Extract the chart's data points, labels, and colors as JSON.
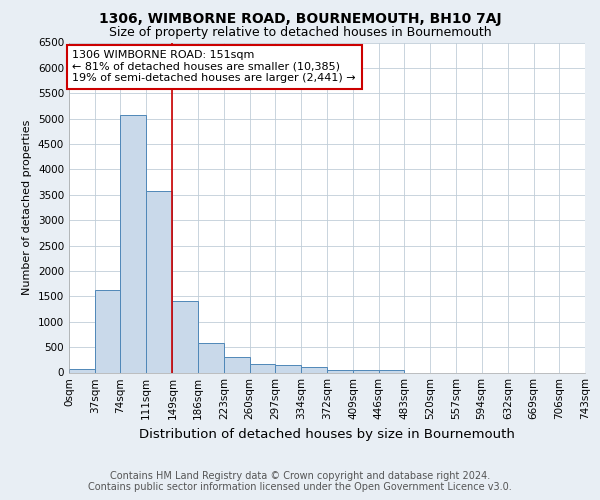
{
  "title": "1306, WIMBORNE ROAD, BOURNEMOUTH, BH10 7AJ",
  "subtitle": "Size of property relative to detached houses in Bournemouth",
  "xlabel": "Distribution of detached houses by size in Bournemouth",
  "ylabel": "Number of detached properties",
  "footnote1": "Contains HM Land Registry data © Crown copyright and database right 2024.",
  "footnote2": "Contains public sector information licensed under the Open Government Licence v3.0.",
  "annotation_line1": "1306 WIMBORNE ROAD: 151sqm",
  "annotation_line2": "← 81% of detached houses are smaller (10,385)",
  "annotation_line3": "19% of semi-detached houses are larger (2,441) →",
  "bin_edges": [
    0,
    37,
    74,
    111,
    149,
    186,
    223,
    260,
    297,
    334,
    372,
    409,
    446,
    483,
    520,
    557,
    594,
    632,
    669,
    706,
    743
  ],
  "bar_heights": [
    75,
    1625,
    5080,
    3580,
    1400,
    590,
    300,
    160,
    145,
    100,
    55,
    45,
    55,
    0,
    0,
    0,
    0,
    0,
    0,
    0
  ],
  "bar_color": "#c9d9ea",
  "bar_edgecolor": "#4f87b8",
  "red_line_x": 149,
  "red_line_color": "#cc0000",
  "annotation_box_edgecolor": "#cc0000",
  "annotation_box_facecolor": "white",
  "ylim": [
    0,
    6500
  ],
  "ytick_step": 500,
  "background_color": "#e8eef4",
  "plot_background_color": "white",
  "grid_color": "#c0cdd8",
  "title_fontsize": 10,
  "subtitle_fontsize": 9,
  "xlabel_fontsize": 9.5,
  "ylabel_fontsize": 8,
  "tick_fontsize": 7.5,
  "annotation_fontsize": 8,
  "footnote_fontsize": 7
}
